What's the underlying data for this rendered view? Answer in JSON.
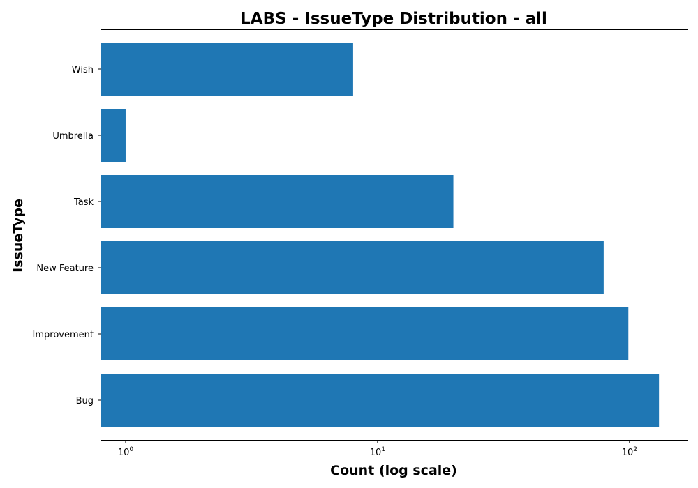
{
  "chart_data": {
    "type": "bar",
    "orientation": "horizontal",
    "title": "LABS - IssueType Distribution - all",
    "xlabel": "Count (log scale)",
    "ylabel": "IssueType",
    "x_scale": "log",
    "xlim": [
      0.8,
      170
    ],
    "categories": [
      "Bug",
      "Improvement",
      "New Feature",
      "Task",
      "Umbrella",
      "Wish"
    ],
    "values": [
      131,
      99,
      79,
      20,
      1,
      8
    ],
    "x_major_ticks": [
      {
        "value": 1,
        "base": "10",
        "exp": "0"
      },
      {
        "value": 10,
        "base": "10",
        "exp": "1"
      },
      {
        "value": 100,
        "base": "10",
        "exp": "2"
      }
    ],
    "bar_color": "#1f77b4",
    "grid": false,
    "legend": "none"
  }
}
